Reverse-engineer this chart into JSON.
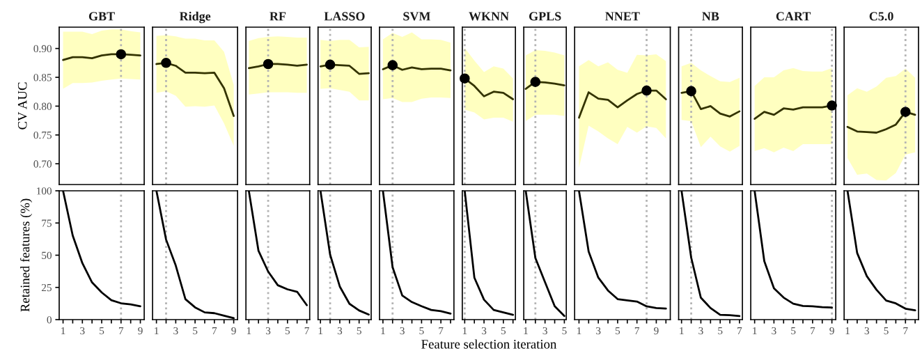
{
  "chart_data": [
    {
      "type": "line",
      "title": "GBT",
      "ylabel": "CV AUC",
      "xlim": [
        0.6,
        9.4
      ],
      "ylim": [
        0.664,
        0.937
      ],
      "yticks": [
        {
          "value": 0.7,
          "label": "0.70"
        },
        {
          "value": 0.75,
          "label": "0.75"
        },
        {
          "value": 0.8,
          "label": "0.80"
        },
        {
          "value": 0.85,
          "label": "0.85"
        },
        {
          "value": 0.9,
          "label": "0.90"
        }
      ],
      "tick_labels": "y",
      "ref_lines": [
        {
          "axis": "x",
          "value": 7,
          "color": "#b3b3b3",
          "line_style": "dotted"
        }
      ],
      "series": [
        {
          "type": "line",
          "color": "#333300",
          "x": [
            1,
            2,
            3,
            4,
            5,
            6,
            7,
            8,
            9
          ],
          "values": [
            0.88,
            0.885,
            0.885,
            0.883,
            0.888,
            0.89,
            0.89,
            0.889,
            0.888
          ],
          "lower": [
            0.83,
            0.84,
            0.84,
            0.841,
            0.844,
            0.846,
            0.848,
            0.847,
            0.846
          ],
          "upper": [
            0.929,
            0.929,
            0.929,
            0.925,
            0.931,
            0.933,
            0.933,
            0.93,
            0.928
          ]
        },
        {
          "type": "scatter",
          "color": "#000000",
          "x": [
            7
          ],
          "values": [
            0.89
          ]
        }
      ]
    },
    {
      "type": "line",
      "title": "Ridge",
      "xlim": [
        0.6,
        9.4
      ],
      "ylim": [
        0.664,
        0.937
      ],
      "tick_labels": false,
      "ref_lines": [
        {
          "axis": "x",
          "value": 2,
          "color": "#b3b3b3",
          "line_style": "dotted"
        }
      ],
      "series": [
        {
          "type": "line",
          "color": "#333300",
          "x": [
            1,
            2,
            3,
            4,
            5,
            6,
            7,
            8,
            9
          ],
          "values": [
            0.873,
            0.875,
            0.87,
            0.858,
            0.858,
            0.857,
            0.858,
            0.831,
            0.783
          ],
          "lower": [
            0.823,
            0.826,
            0.818,
            0.799,
            0.8,
            0.799,
            0.801,
            0.77,
            0.731
          ],
          "upper": [
            0.922,
            0.923,
            0.921,
            0.917,
            0.917,
            0.914,
            0.914,
            0.894,
            0.837
          ]
        },
        {
          "type": "scatter",
          "color": "#000000",
          "x": [
            2
          ],
          "values": [
            0.875
          ]
        }
      ]
    },
    {
      "type": "line",
      "title": "RF",
      "xlim": [
        0.7,
        7.3
      ],
      "ylim": [
        0.664,
        0.937
      ],
      "tick_labels": false,
      "ref_lines": [
        {
          "axis": "x",
          "value": 3,
          "color": "#b3b3b3",
          "line_style": "dotted"
        }
      ],
      "series": [
        {
          "type": "line",
          "color": "#333300",
          "x": [
            1,
            2,
            3,
            4,
            5,
            6,
            7
          ],
          "values": [
            0.866,
            0.869,
            0.873,
            0.873,
            0.872,
            0.87,
            0.872
          ],
          "lower": [
            0.82,
            0.822,
            0.824,
            0.824,
            0.824,
            0.823,
            0.823
          ],
          "upper": [
            0.913,
            0.918,
            0.92,
            0.921,
            0.92,
            0.919,
            0.919
          ]
        },
        {
          "type": "scatter",
          "color": "#000000",
          "x": [
            3
          ],
          "values": [
            0.873
          ]
        }
      ]
    },
    {
      "type": "line",
      "title": "LASSO",
      "xlim": [
        0.75,
        6.25
      ],
      "ylim": [
        0.664,
        0.937
      ],
      "tick_labels": false,
      "ref_lines": [
        {
          "axis": "x",
          "value": 2,
          "color": "#b3b3b3",
          "line_style": "dotted"
        }
      ],
      "series": [
        {
          "type": "line",
          "color": "#333300",
          "x": [
            1,
            2,
            3,
            4,
            5,
            6
          ],
          "values": [
            0.869,
            0.872,
            0.871,
            0.87,
            0.856,
            0.857
          ],
          "lower": [
            0.83,
            0.831,
            0.828,
            0.825,
            0.81,
            0.81
          ],
          "upper": [
            0.915,
            0.913,
            0.915,
            0.915,
            0.902,
            0.903
          ]
        },
        {
          "type": "scatter",
          "color": "#000000",
          "x": [
            2
          ],
          "values": [
            0.872
          ]
        }
      ]
    },
    {
      "type": "line",
      "title": "SVM",
      "xlim": [
        0.65,
        8.35
      ],
      "ylim": [
        0.664,
        0.937
      ],
      "tick_labels": false,
      "ref_lines": [
        {
          "axis": "x",
          "value": 2,
          "color": "#b3b3b3",
          "line_style": "dotted"
        }
      ],
      "series": [
        {
          "type": "line",
          "color": "#333300",
          "x": [
            1,
            2,
            3,
            4,
            5,
            6,
            7,
            8
          ],
          "values": [
            0.864,
            0.871,
            0.863,
            0.867,
            0.864,
            0.865,
            0.865,
            0.862
          ],
          "lower": [
            0.812,
            0.814,
            0.807,
            0.807,
            0.813,
            0.815,
            0.815,
            0.814
          ],
          "upper": [
            0.916,
            0.927,
            0.92,
            0.928,
            0.916,
            0.916,
            0.915,
            0.91
          ]
        },
        {
          "type": "scatter",
          "color": "#000000",
          "x": [
            2
          ],
          "values": [
            0.871
          ]
        }
      ]
    },
    {
      "type": "line",
      "title": "WKNN",
      "xlim": [
        0.75,
        6.25
      ],
      "ylim": [
        0.664,
        0.937
      ],
      "tick_labels": false,
      "ref_lines": [
        {
          "axis": "x",
          "value": 1,
          "color": "#b3b3b3",
          "line_style": "dotted"
        }
      ],
      "series": [
        {
          "type": "line",
          "color": "#333300",
          "x": [
            1,
            2,
            3,
            4,
            5,
            6
          ],
          "values": [
            0.848,
            0.835,
            0.817,
            0.825,
            0.823,
            0.812
          ],
          "lower": [
            0.794,
            0.789,
            0.777,
            0.78,
            0.78,
            0.773
          ],
          "upper": [
            0.901,
            0.879,
            0.859,
            0.869,
            0.865,
            0.848
          ]
        },
        {
          "type": "scatter",
          "color": "#000000",
          "x": [
            1
          ],
          "values": [
            0.848
          ]
        }
      ]
    },
    {
      "type": "line",
      "title": "GPLS",
      "xlim": [
        0.8,
        5.2
      ],
      "ylim": [
        0.664,
        0.937
      ],
      "tick_labels": false,
      "ref_lines": [
        {
          "axis": "x",
          "value": 2,
          "color": "#b3b3b3",
          "line_style": "dotted"
        }
      ],
      "series": [
        {
          "type": "line",
          "color": "#333300",
          "x": [
            1,
            2,
            3,
            4,
            5
          ],
          "values": [
            0.83,
            0.842,
            0.841,
            0.839,
            0.836
          ],
          "lower": [
            0.774,
            0.785,
            0.785,
            0.785,
            0.783
          ],
          "upper": [
            0.888,
            0.897,
            0.896,
            0.893,
            0.888
          ]
        },
        {
          "type": "scatter",
          "color": "#000000",
          "x": [
            2
          ],
          "values": [
            0.842
          ]
        }
      ]
    },
    {
      "type": "line",
      "title": "NNET",
      "xlim": [
        0.55,
        10.45
      ],
      "ylim": [
        0.664,
        0.937
      ],
      "tick_labels": false,
      "ref_lines": [
        {
          "axis": "x",
          "value": 8,
          "color": "#b3b3b3",
          "line_style": "dotted"
        }
      ],
      "series": [
        {
          "type": "line",
          "color": "#333300",
          "x": [
            1,
            2,
            3,
            4,
            5,
            6,
            7,
            8,
            9,
            10
          ],
          "values": [
            0.78,
            0.824,
            0.813,
            0.811,
            0.798,
            0.81,
            0.821,
            0.827,
            0.827,
            0.812
          ],
          "lower": [
            0.693,
            0.766,
            0.756,
            0.744,
            0.734,
            0.764,
            0.754,
            0.765,
            0.762,
            0.744
          ],
          "upper": [
            0.869,
            0.88,
            0.869,
            0.876,
            0.863,
            0.858,
            0.889,
            0.888,
            0.89,
            0.878
          ]
        },
        {
          "type": "scatter",
          "color": "#000000",
          "x": [
            8
          ],
          "values": [
            0.827
          ]
        }
      ]
    },
    {
      "type": "line",
      "title": "NB",
      "xlim": [
        0.7,
        7.3
      ],
      "ylim": [
        0.664,
        0.937
      ],
      "tick_labels": false,
      "ref_lines": [
        {
          "axis": "x",
          "value": 2,
          "color": "#b3b3b3",
          "line_style": "dotted"
        }
      ],
      "series": [
        {
          "type": "line",
          "color": "#333300",
          "x": [
            1,
            2,
            3,
            4,
            5,
            6,
            7
          ],
          "values": [
            0.823,
            0.826,
            0.795,
            0.8,
            0.787,
            0.782,
            0.791
          ],
          "lower": [
            0.776,
            0.774,
            0.729,
            0.747,
            0.73,
            0.721,
            0.731
          ],
          "upper": [
            0.869,
            0.875,
            0.862,
            0.852,
            0.843,
            0.842,
            0.849
          ]
        },
        {
          "type": "scatter",
          "color": "#000000",
          "x": [
            2
          ],
          "values": [
            0.826
          ]
        }
      ]
    },
    {
      "type": "line",
      "title": "CART",
      "xlim": [
        0.6,
        9.4
      ],
      "ylim": [
        0.664,
        0.937
      ],
      "tick_labels": false,
      "ref_lines": [
        {
          "axis": "x",
          "value": 9,
          "color": "#b3b3b3",
          "line_style": "dotted"
        }
      ],
      "series": [
        {
          "type": "line",
          "color": "#333300",
          "x": [
            1,
            2,
            3,
            4,
            5,
            6,
            7,
            8,
            9
          ],
          "values": [
            0.778,
            0.79,
            0.785,
            0.796,
            0.794,
            0.798,
            0.798,
            0.798,
            0.801
          ],
          "lower": [
            0.722,
            0.727,
            0.72,
            0.728,
            0.722,
            0.734,
            0.734,
            0.734,
            0.734
          ],
          "upper": [
            0.835,
            0.85,
            0.85,
            0.862,
            0.866,
            0.861,
            0.86,
            0.86,
            0.866
          ]
        },
        {
          "type": "scatter",
          "color": "#000000",
          "x": [
            9
          ],
          "values": [
            0.801
          ]
        }
      ]
    },
    {
      "type": "line",
      "title": "C5.0",
      "xlim": [
        0.65,
        8.35
      ],
      "ylim": [
        0.664,
        0.937
      ],
      "tick_labels": false,
      "ref_lines": [
        {
          "axis": "x",
          "value": 7,
          "color": "#b3b3b3",
          "line_style": "dotted"
        }
      ],
      "series": [
        {
          "type": "line",
          "color": "#333300",
          "x": [
            1,
            2,
            3,
            4,
            5,
            6,
            7,
            8
          ],
          "values": [
            0.764,
            0.756,
            0.755,
            0.754,
            0.76,
            0.768,
            0.79,
            0.785
          ],
          "lower": [
            0.71,
            0.681,
            0.683,
            0.672,
            0.671,
            0.684,
            0.716,
            0.72
          ],
          "upper": [
            0.819,
            0.831,
            0.825,
            0.834,
            0.849,
            0.852,
            0.865,
            0.849
          ]
        },
        {
          "type": "scatter",
          "color": "#000000",
          "x": [
            7
          ],
          "values": [
            0.79
          ]
        }
      ]
    },
    {
      "type": "line",
      "ylabel": "Retained features (%)",
      "xlim": [
        0.6,
        9.4
      ],
      "ylim": [
        0,
        100
      ],
      "yticks": [
        0,
        25,
        50,
        75,
        100
      ],
      "xticks": [
        1,
        {
          "value": 2,
          "label": null
        },
        3,
        {
          "value": 4,
          "label": null
        },
        5,
        {
          "value": 6,
          "label": null
        },
        7,
        {
          "value": 8,
          "label": null
        },
        9
      ],
      "ref_lines": [
        {
          "axis": "x",
          "value": 7,
          "color": "#b3b3b3",
          "line_style": "dotted"
        }
      ],
      "series": [
        {
          "color": "#000000",
          "x": [
            1,
            2,
            3,
            4,
            5,
            6,
            7,
            8,
            9
          ],
          "values": [
            100,
            65.3,
            43.8,
            28.9,
            21.1,
            15.1,
            12.7,
            11.8,
            10.4
          ]
        }
      ]
    },
    {
      "type": "line",
      "xlim": [
        0.6,
        9.4
      ],
      "ylim": [
        0,
        100
      ],
      "tick_labels": "x",
      "xticks": [
        1,
        {
          "value": 2,
          "label": null
        },
        3,
        {
          "value": 4,
          "label": null
        },
        5,
        {
          "value": 6,
          "label": null
        },
        7,
        {
          "value": 8,
          "label": null
        },
        9
      ],
      "ref_lines": [
        {
          "axis": "x",
          "value": 2,
          "color": "#b3b3b3",
          "line_style": "dotted"
        }
      ],
      "series": [
        {
          "color": "#000000",
          "x": [
            1,
            2,
            3,
            4,
            5,
            6,
            7,
            8,
            9
          ],
          "values": [
            100,
            62.1,
            42.0,
            15.9,
            9.5,
            5.6,
            5.0,
            3.0,
            1.1
          ]
        }
      ]
    },
    {
      "type": "line",
      "xlim": [
        0.7,
        7.3
      ],
      "ylim": [
        0,
        100
      ],
      "tick_labels": "x",
      "xticks": [
        1,
        {
          "value": 2,
          "label": null
        },
        3,
        {
          "value": 4,
          "label": null
        },
        5,
        {
          "value": 6,
          "label": null
        },
        7
      ],
      "ref_lines": [
        {
          "axis": "x",
          "value": 3,
          "color": "#b3b3b3",
          "line_style": "dotted"
        }
      ],
      "series": [
        {
          "color": "#000000",
          "x": [
            1,
            2,
            3,
            4,
            5,
            6,
            7
          ],
          "values": [
            100,
            53.4,
            37.3,
            26.7,
            23.5,
            21.6,
            11.2
          ]
        }
      ]
    },
    {
      "type": "line",
      "xlim": [
        0.75,
        6.25
      ],
      "ylim": [
        0,
        100
      ],
      "tick_labels": "x",
      "xticks": [
        1,
        {
          "value": 2,
          "label": null
        },
        3,
        {
          "value": 4,
          "label": null
        },
        5,
        {
          "value": 6,
          "label": null
        }
      ],
      "ref_lines": [
        {
          "axis": "x",
          "value": 2,
          "color": "#b3b3b3",
          "line_style": "dotted"
        }
      ],
      "series": [
        {
          "color": "#000000",
          "x": [
            1,
            2,
            3,
            4,
            5,
            6
          ],
          "values": [
            100,
            50.4,
            25.7,
            12.3,
            7.1,
            3.9
          ]
        }
      ]
    },
    {
      "type": "line",
      "xlim": [
        0.65,
        8.35
      ],
      "ylim": [
        0,
        100
      ],
      "tick_labels": "x",
      "xticks": [
        1,
        {
          "value": 2,
          "label": null
        },
        3,
        {
          "value": 4,
          "label": null
        },
        5,
        {
          "value": 6,
          "label": null
        },
        7,
        {
          "value": 8,
          "label": null
        }
      ],
      "ref_lines": [
        {
          "axis": "x",
          "value": 2,
          "color": "#b3b3b3",
          "line_style": "dotted"
        }
      ],
      "series": [
        {
          "color": "#000000",
          "x": [
            1,
            2,
            3,
            4,
            5,
            6,
            7,
            8
          ],
          "values": [
            100,
            40.7,
            18.7,
            13.6,
            10.4,
            7.5,
            6.5,
            4.7
          ]
        }
      ]
    },
    {
      "type": "line",
      "xlabel": "Feature selection iteration",
      "xlim": [
        0.75,
        6.25
      ],
      "ylim": [
        0,
        100
      ],
      "tick_labels": "x",
      "xticks": [
        1,
        {
          "value": 2,
          "label": null
        },
        3,
        {
          "value": 4,
          "label": null
        },
        5,
        {
          "value": 6,
          "label": null
        }
      ],
      "ref_lines": [
        {
          "axis": "x",
          "value": 1,
          "color": "#b3b3b3",
          "line_style": "dotted"
        }
      ],
      "series": [
        {
          "color": "#000000",
          "x": [
            1,
            2,
            3,
            4,
            5,
            6
          ],
          "values": [
            100,
            32.6,
            15.5,
            7.5,
            5.6,
            3.7
          ]
        }
      ]
    },
    {
      "type": "line",
      "xlim": [
        0.8,
        5.2
      ],
      "ylim": [
        0,
        100
      ],
      "tick_labels": "x",
      "xticks": [
        1,
        {
          "value": 2,
          "label": null
        },
        3,
        {
          "value": 4,
          "label": null
        },
        5
      ],
      "ref_lines": [
        {
          "axis": "x",
          "value": 2,
          "color": "#b3b3b3",
          "line_style": "dotted"
        }
      ],
      "series": [
        {
          "color": "#000000",
          "x": [
            1,
            2,
            3,
            4,
            5
          ],
          "values": [
            100,
            47.8,
            29.1,
            10.4,
            2.8
          ]
        }
      ]
    },
    {
      "type": "line",
      "xlim": [
        0.55,
        10.45
      ],
      "ylim": [
        0,
        100
      ],
      "tick_labels": "x",
      "xticks": [
        1,
        {
          "value": 2,
          "label": null
        },
        3,
        {
          "value": 4,
          "label": null
        },
        5,
        {
          "value": 6,
          "label": null
        },
        7,
        {
          "value": 8,
          "label": null
        },
        9,
        {
          "value": 10,
          "label": null
        }
      ],
      "ref_lines": [
        {
          "axis": "x",
          "value": 8,
          "color": "#b3b3b3",
          "line_style": "dotted"
        }
      ],
      "series": [
        {
          "color": "#000000",
          "x": [
            1,
            2,
            3,
            4,
            5,
            6,
            7,
            8,
            9,
            10
          ],
          "values": [
            100,
            52.8,
            32.6,
            22.6,
            15.9,
            14.9,
            14.0,
            10.3,
            9.0,
            8.6
          ]
        }
      ]
    },
    {
      "type": "line",
      "xlim": [
        0.7,
        7.3
      ],
      "ylim": [
        0,
        100
      ],
      "tick_labels": "x",
      "xticks": [
        1,
        {
          "value": 2,
          "label": null
        },
        3,
        {
          "value": 4,
          "label": null
        },
        5,
        {
          "value": 6,
          "label": null
        },
        7
      ],
      "ref_lines": [
        {
          "axis": "x",
          "value": 2,
          "color": "#b3b3b3",
          "line_style": "dotted"
        }
      ],
      "series": [
        {
          "color": "#000000",
          "x": [
            1,
            2,
            3,
            4,
            5,
            6,
            7
          ],
          "values": [
            100,
            48.1,
            17.0,
            9.0,
            3.7,
            3.4,
            2.8
          ]
        }
      ]
    },
    {
      "type": "line",
      "xlim": [
        0.6,
        9.4
      ],
      "ylim": [
        0,
        100
      ],
      "tick_labels": "x",
      "xticks": [
        1,
        {
          "value": 2,
          "label": null
        },
        3,
        {
          "value": 4,
          "label": null
        },
        5,
        {
          "value": 6,
          "label": null
        },
        7,
        {
          "value": 8,
          "label": null
        },
        9
      ],
      "ref_lines": [
        {
          "axis": "x",
          "value": 9,
          "color": "#b3b3b3",
          "line_style": "dotted"
        }
      ],
      "series": [
        {
          "color": "#000000",
          "x": [
            1,
            2,
            3,
            4,
            5,
            6,
            7,
            8,
            9
          ],
          "values": [
            100,
            45.4,
            24.3,
            17.1,
            12.4,
            10.6,
            10.3,
            9.7,
            9.4
          ]
        }
      ]
    },
    {
      "type": "line",
      "xlim": [
        0.65,
        8.35
      ],
      "ylim": [
        0,
        100
      ],
      "tick_labels": "x",
      "xticks": [
        1,
        {
          "value": 2,
          "label": null
        },
        3,
        {
          "value": 4,
          "label": null
        },
        5,
        {
          "value": 6,
          "label": null
        },
        7,
        {
          "value": 8,
          "label": null
        }
      ],
      "ref_lines": [
        {
          "axis": "x",
          "value": 7,
          "color": "#b3b3b3",
          "line_style": "dotted"
        }
      ],
      "series": [
        {
          "color": "#000000",
          "x": [
            1,
            2,
            3,
            4,
            5,
            6,
            7,
            8
          ],
          "values": [
            100,
            51.7,
            33.7,
            23.2,
            14.8,
            12.6,
            8.5,
            7.2
          ]
        }
      ]
    }
  ]
}
